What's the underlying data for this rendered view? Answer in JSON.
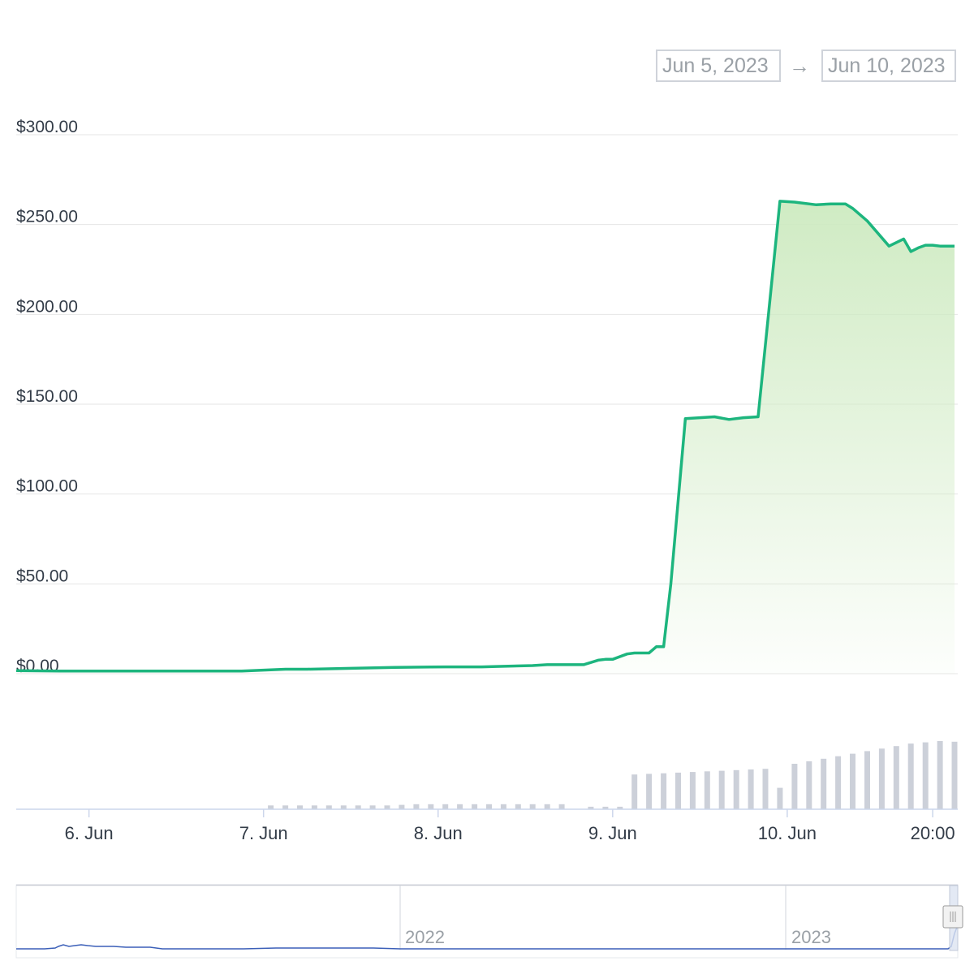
{
  "range_selector": {
    "from": "Jun 5, 2023",
    "arrow": "→",
    "to": "Jun 10, 2023"
  },
  "colors": {
    "price_line": "#1db57e",
    "area_fill": "#cdeac0",
    "volume_bar": "#ccd0d9",
    "navigator_line": "#3b5fb8"
  },
  "chart_data": {
    "type": "area",
    "title": "",
    "ylabel": "",
    "xlabel": "",
    "ylim": [
      0,
      300
    ],
    "yticks": [
      "$0.00",
      "$50.00",
      "$100.00",
      "$150.00",
      "$200.00",
      "$250.00",
      "$300.00"
    ],
    "xticks": [
      "6. Jun",
      "7. Jun",
      "8. Jun",
      "9. Jun",
      "10. Jun",
      "20:00"
    ],
    "xlim": [
      "2023-06-05T14:00",
      "2023-06-10T23:00"
    ],
    "series": [
      {
        "x": [
          "2023-06-05T14:00",
          "2023-06-05T20:00",
          "2023-06-06T00:00",
          "2023-06-06T06:00",
          "2023-06-06T12:00",
          "2023-06-06T17:00",
          "2023-06-06T21:00",
          "2023-06-07T00:00",
          "2023-06-07T03:00",
          "2023-06-07T06:00",
          "2023-06-07T12:00",
          "2023-06-07T18:00",
          "2023-06-07T23:00",
          "2023-06-08T01:00",
          "2023-06-08T06:00",
          "2023-06-08T08:00",
          "2023-06-08T13:00",
          "2023-06-08T15:00",
          "2023-06-08T20:00",
          "2023-06-08T22:00",
          "2023-06-08T23:00",
          "2023-06-09T00:00",
          "2023-06-09T02:00",
          "2023-06-09T03:00",
          "2023-06-09T05:00",
          "2023-06-09T06:00",
          "2023-06-09T07:00",
          "2023-06-09T08:00",
          "2023-06-09T10:00",
          "2023-06-09T14:00",
          "2023-06-09T16:00",
          "2023-06-09T18:00",
          "2023-06-09T20:00",
          "2023-06-09T23:00",
          "2023-06-10T01:00",
          "2023-06-10T04:00",
          "2023-06-10T06:00",
          "2023-06-10T08:00",
          "2023-06-10T09:00",
          "2023-06-10T11:00",
          "2023-06-10T14:00",
          "2023-06-10T16:00",
          "2023-06-10T17:00",
          "2023-06-10T18:00",
          "2023-06-10T19:00",
          "2023-06-10T20:00",
          "2023-06-10T21:00",
          "2023-06-10T23:00"
        ],
        "values": [
          1.7,
          1.5,
          1.5,
          1.5,
          1.5,
          1.5,
          1.5,
          2.0,
          2.5,
          2.5,
          3.0,
          3.5,
          3.7,
          3.8,
          3.8,
          4.0,
          4.5,
          5.0,
          5.0,
          7.5,
          8.0,
          8.0,
          11.0,
          11.5,
          11.5,
          15.0,
          15.0,
          50.0,
          142.0,
          143.0,
          141.5,
          142.5,
          143.0,
          263.0,
          262.5,
          261.0,
          261.5,
          261.5,
          259.0,
          252.0,
          238.0,
          242.0,
          235.0,
          237.0,
          238.5,
          238.5,
          238.0,
          238.0
        ]
      }
    ],
    "volume": {
      "x": [
        "2023-06-07T01:00",
        "2023-06-07T03:00",
        "2023-06-07T05:00",
        "2023-06-07T07:00",
        "2023-06-07T09:00",
        "2023-06-07T11:00",
        "2023-06-07T13:00",
        "2023-06-07T15:00",
        "2023-06-07T17:00",
        "2023-06-07T19:00",
        "2023-06-07T21:00",
        "2023-06-07T23:00",
        "2023-06-08T01:00",
        "2023-06-08T03:00",
        "2023-06-08T05:00",
        "2023-06-08T07:00",
        "2023-06-08T09:00",
        "2023-06-08T11:00",
        "2023-06-08T13:00",
        "2023-06-08T15:00",
        "2023-06-08T17:00",
        "2023-06-08T21:00",
        "2023-06-08T23:00",
        "2023-06-09T01:00",
        "2023-06-09T03:00",
        "2023-06-09T05:00",
        "2023-06-09T07:00",
        "2023-06-09T09:00",
        "2023-06-09T11:00",
        "2023-06-09T13:00",
        "2023-06-09T15:00",
        "2023-06-09T17:00",
        "2023-06-09T19:00",
        "2023-06-09T21:00",
        "2023-06-09T23:00",
        "2023-06-10T01:00",
        "2023-06-10T03:00",
        "2023-06-10T05:00",
        "2023-06-10T07:00",
        "2023-06-10T09:00",
        "2023-06-10T11:00",
        "2023-06-10T13:00",
        "2023-06-10T15:00",
        "2023-06-10T17:00",
        "2023-06-10T19:00",
        "2023-06-10T21:00",
        "2023-06-10T23:00"
      ],
      "values": [
        6,
        6,
        6,
        6,
        6,
        6,
        6,
        6,
        6,
        7,
        8,
        8,
        8,
        8,
        8,
        8,
        8,
        8,
        8,
        8,
        8,
        4,
        4,
        4,
        55,
        56,
        57,
        58,
        59,
        60,
        61,
        62,
        63,
        64,
        34,
        72,
        76,
        80,
        84,
        88,
        92,
        96,
        100,
        104,
        106,
        108,
        107
      ]
    },
    "navigator": {
      "labels": [
        "2022",
        "2023"
      ]
    }
  }
}
